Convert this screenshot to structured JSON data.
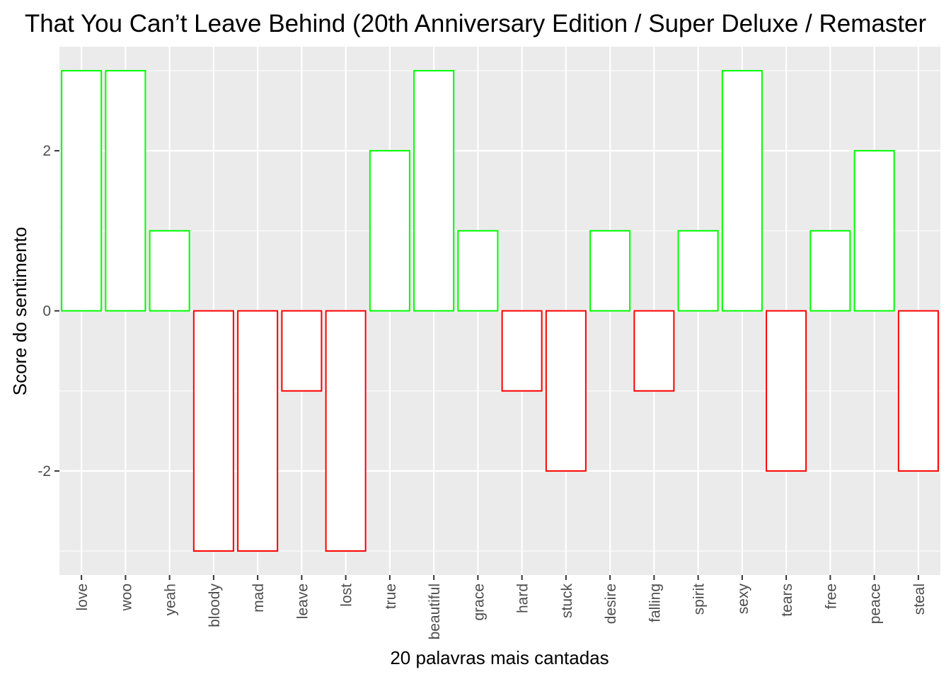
{
  "chart_data": {
    "type": "bar",
    "title": "That You Can’t Leave Behind (20th Anniversary Edition / Super Deluxe / Remaster",
    "xlabel": "20 palavras mais cantadas",
    "ylabel": "Score do sentimento",
    "categories": [
      "love",
      "woo",
      "yeah",
      "bloody",
      "mad",
      "leave",
      "lost",
      "true",
      "beautiful",
      "grace",
      "hard",
      "stuck",
      "desire",
      "falling",
      "spirit",
      "sexy",
      "tears",
      "free",
      "peace",
      "steal"
    ],
    "values": [
      3,
      3,
      1,
      -3,
      -3,
      -1,
      -3,
      2,
      3,
      1,
      -1,
      -2,
      1,
      -1,
      1,
      3,
      -2,
      1,
      2,
      -2
    ],
    "ylim": [
      -3.3,
      3.3
    ],
    "yticks": [
      -2,
      0,
      2
    ],
    "ytick_labels": [
      "-2",
      "0",
      "2"
    ],
    "grid": true,
    "legend": "none",
    "colors": {
      "positive_outline": "#00ff00",
      "negative_outline": "#ff0000",
      "bar_fill": "#ffffff",
      "panel_background": "#ebebeb",
      "grid": "#ffffff"
    }
  }
}
